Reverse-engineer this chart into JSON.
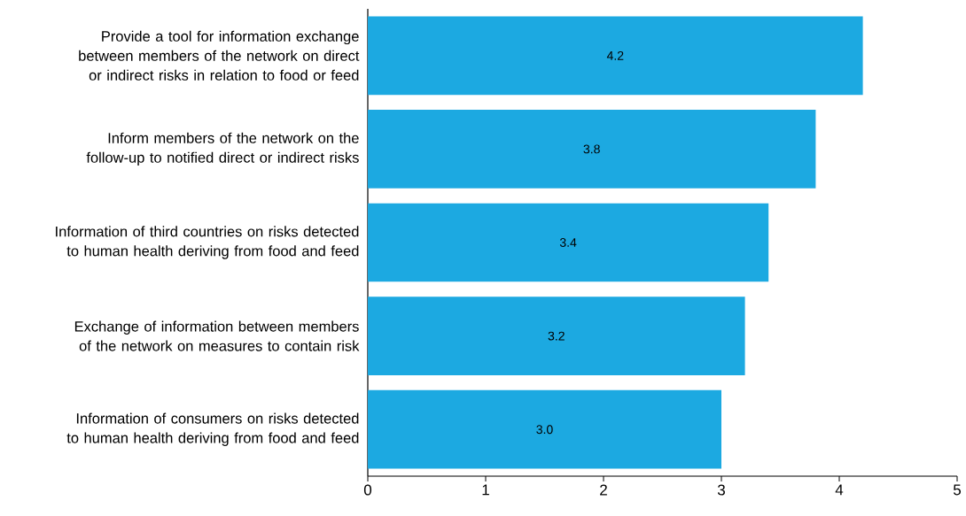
{
  "chart_data": {
    "type": "bar",
    "orientation": "horizontal",
    "categories": [
      "Provide a tool for information exchange between members of the network on direct or indirect risks in relation to food or feed",
      "Inform members of the network on the follow-up to notified direct or indirect risks",
      "Information of third countries on risks detected to human health deriving from food and feed",
      "Exchange of information between members of the network on measures to contain risk",
      "Information of consumers on risks detected to human health deriving from food and feed"
    ],
    "values": [
      4.2,
      3.8,
      3.4,
      3.2,
      3.0
    ],
    "value_labels": [
      "4.2",
      "3.8",
      "3.4",
      "3.2",
      "3.0"
    ],
    "color": "#1ca9e1",
    "xlim": [
      0,
      5
    ],
    "xticks": [
      0,
      1,
      2,
      3,
      4,
      5
    ],
    "grid": false
  }
}
